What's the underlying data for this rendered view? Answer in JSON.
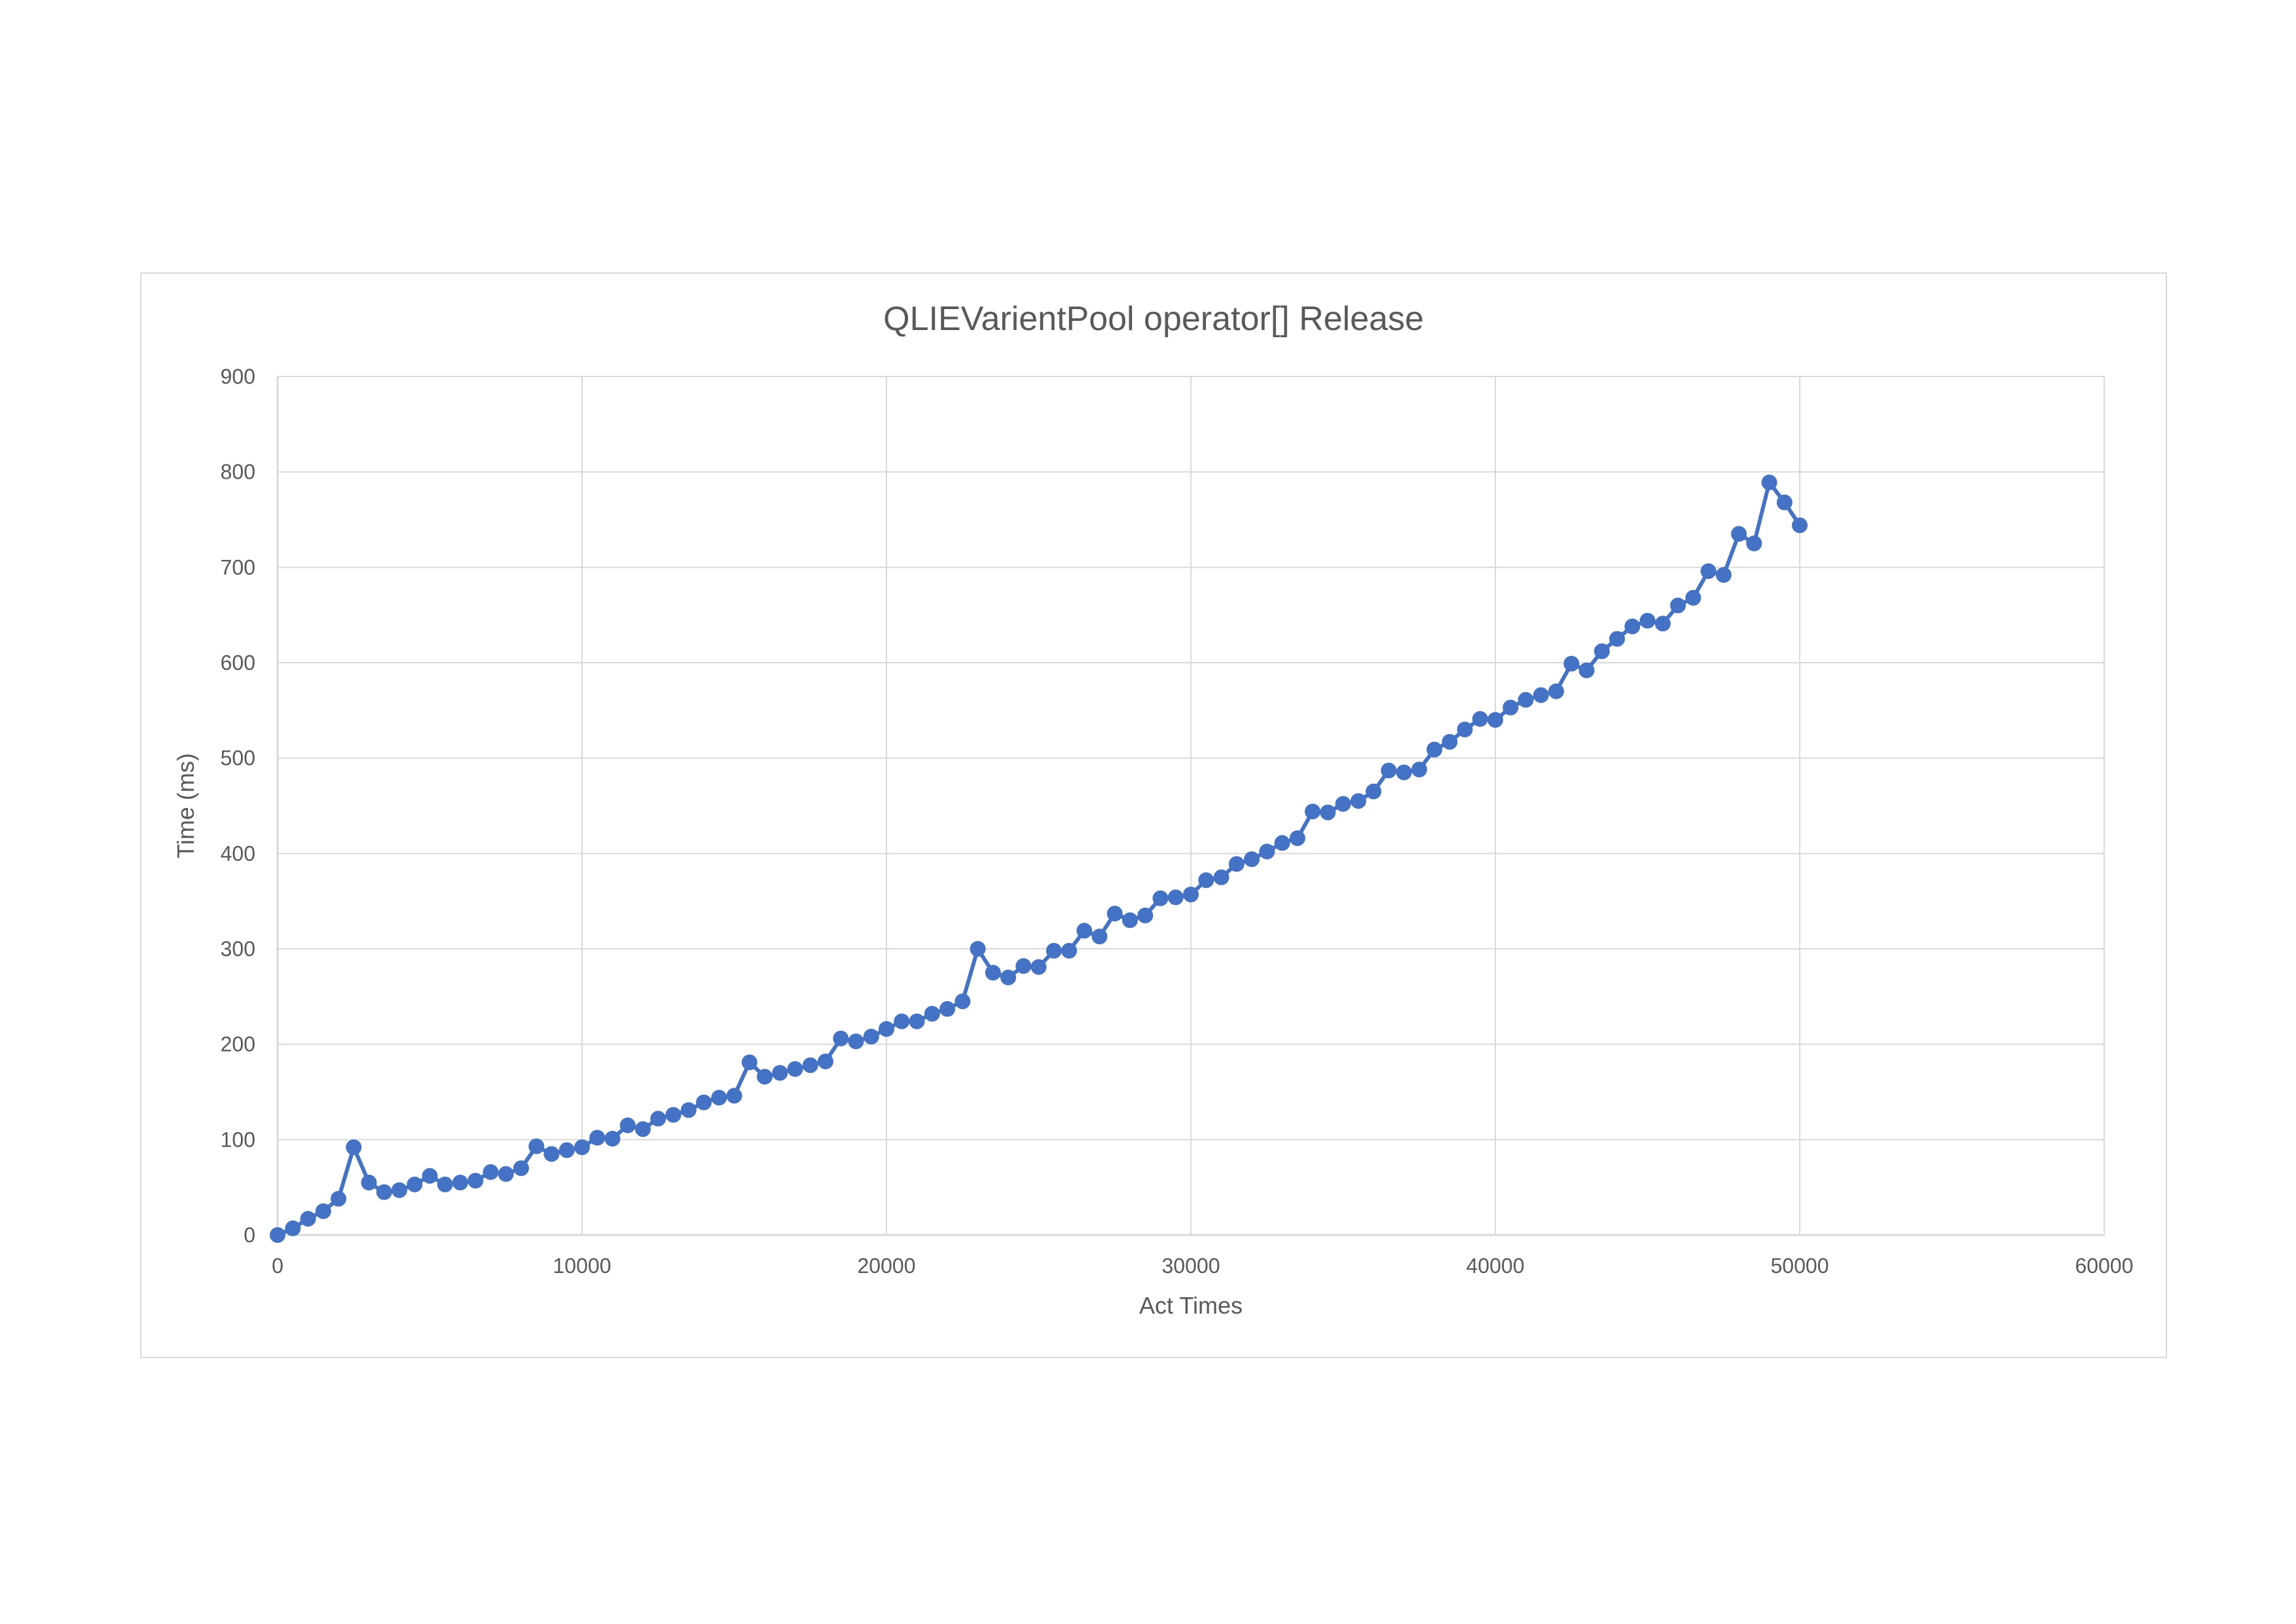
{
  "chart_data": {
    "type": "scatter",
    "title": "QLIEVarientPool operator[] Release",
    "xlabel": "Act Times",
    "ylabel": "Time (ms)",
    "xlim": [
      0,
      60000
    ],
    "ylim": [
      0,
      900
    ],
    "x_ticks": [
      "0",
      "10000",
      "20000",
      "30000",
      "40000",
      "50000",
      "60000"
    ],
    "y_ticks": [
      "0",
      "100",
      "200",
      "300",
      "400",
      "500",
      "600",
      "700",
      "800",
      "900"
    ],
    "grid": true,
    "legend": "none",
    "colors": {
      "series": "#4472C4",
      "grid": "#d9d9d9",
      "text": "#595959"
    },
    "series": [
      {
        "style": "line-with-markers",
        "x": [
          0,
          500,
          1000,
          1500,
          2000,
          2500,
          3000,
          3500,
          4000,
          4500,
          5000,
          5500,
          6000,
          6500,
          7000,
          7500,
          8000,
          8500,
          9000,
          9500,
          10000,
          10500,
          11000,
          11500,
          12000,
          12500,
          13000,
          13500,
          14000,
          14500,
          15000,
          15500,
          16000,
          16500,
          17000,
          17500,
          18000,
          18500,
          19000,
          19500,
          20000,
          20500,
          21000,
          21500,
          22000,
          22500,
          23000,
          23500,
          24000,
          24500,
          25000,
          25500,
          26000,
          26500,
          27000,
          27500,
          28000,
          28500,
          29000,
          29500,
          30000,
          30500,
          31000,
          31500,
          32000,
          32500,
          33000,
          33500,
          34000,
          34500,
          35000,
          35500,
          36000,
          36500,
          37000,
          37500,
          38000,
          38500,
          39000,
          39500,
          40000,
          40500,
          41000,
          41500,
          42000,
          42500,
          43000,
          43500,
          44000,
          44500,
          45000,
          45500,
          46000,
          46500,
          47000,
          47500,
          48000,
          48500,
          49000,
          49500,
          50000
        ],
        "y": [
          0,
          7,
          17,
          25,
          38,
          92,
          55,
          45,
          47,
          53,
          62,
          53,
          55,
          57,
          66,
          64,
          70,
          93,
          85,
          89,
          92,
          102,
          101,
          115,
          111,
          122,
          126,
          131,
          139,
          144,
          146,
          181,
          166,
          170,
          174,
          178,
          182,
          206,
          203,
          208,
          216,
          224,
          224,
          232,
          237,
          245,
          300,
          275,
          270,
          282,
          281,
          298,
          298,
          319,
          313,
          337,
          330,
          335,
          353,
          354,
          357,
          372,
          375,
          389,
          394,
          402,
          411,
          416,
          444,
          443,
          452,
          455,
          465,
          487,
          485,
          488,
          509,
          517,
          530,
          541,
          540,
          553,
          561,
          566,
          570,
          599,
          592,
          612,
          625,
          638,
          644,
          641,
          660,
          668,
          696,
          692,
          735,
          725,
          789,
          768,
          744
        ]
      }
    ]
  }
}
